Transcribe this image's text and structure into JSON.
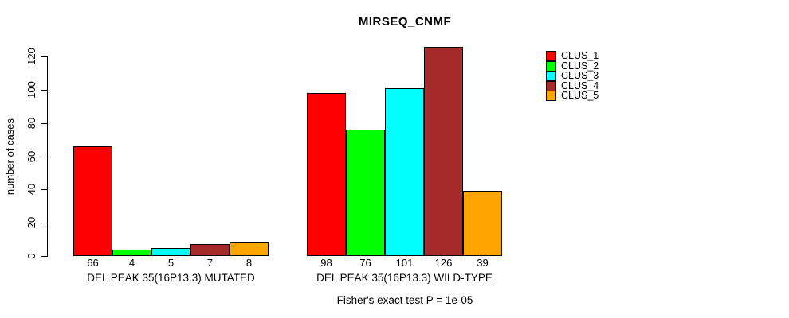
{
  "chart_data": {
    "type": "bar",
    "title": "MIRSEQ_CNMF",
    "subtitle": "Fisher's exact test P = 1e-05",
    "ylabel": "number of cases",
    "xlabel": "",
    "ylim": [
      0,
      120
    ],
    "yticks": [
      0,
      20,
      40,
      60,
      80,
      100,
      120
    ],
    "grid": false,
    "legend_position": "right",
    "background_color": "#FFFFFF",
    "bar_border_color": "#000000",
    "series": [
      {
        "name": "CLUS_1",
        "color": "#FF0000"
      },
      {
        "name": "CLUS_2",
        "color": "#00FF00"
      },
      {
        "name": "CLUS_3",
        "color": "#00FFFF"
      },
      {
        "name": "CLUS_4",
        "color": "#A52A2A"
      },
      {
        "name": "CLUS_5",
        "color": "#FFA500"
      }
    ],
    "groups": [
      {
        "label": "DEL PEAK 35(16P13.3) MUTATED",
        "values": [
          66,
          4,
          5,
          7,
          8
        ]
      },
      {
        "label": "DEL PEAK 35(16P13.3) WILD-TYPE",
        "values": [
          98,
          76,
          101,
          126,
          39
        ]
      }
    ]
  }
}
